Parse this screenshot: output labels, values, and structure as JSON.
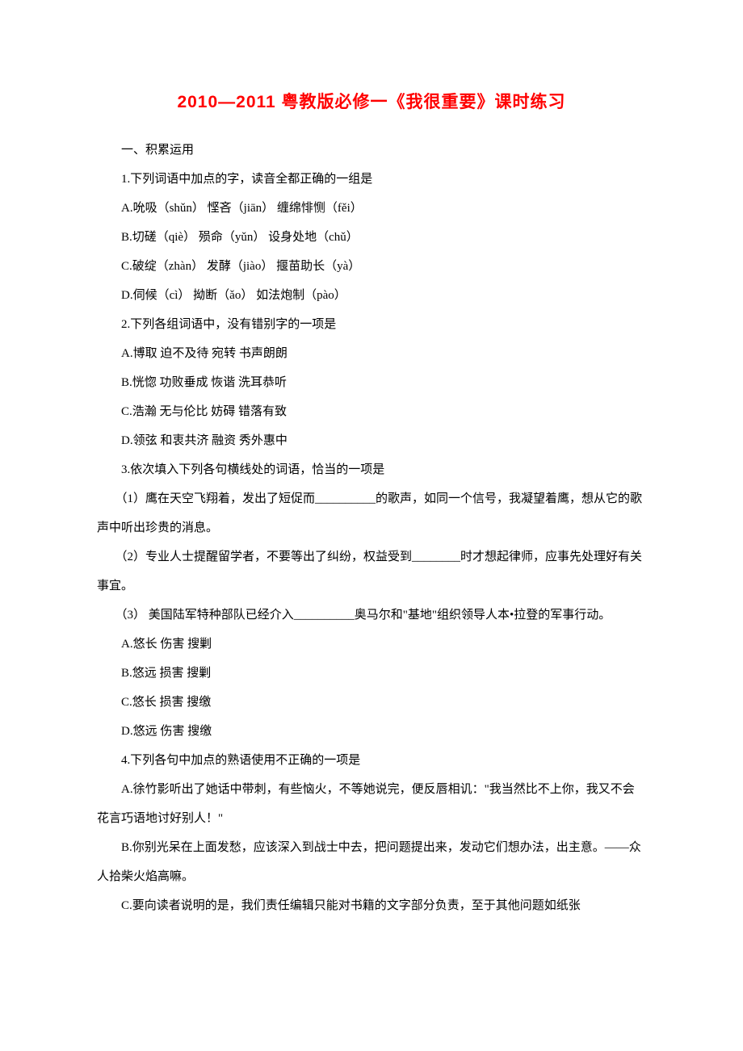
{
  "title": "2010—2011 粤教版必修一《我很重要》课时练习",
  "section_heading": "一、积累运用",
  "q1": {
    "stem": "1.下列词语中加点的字，读音全都正确的一组是",
    "a": "A.吮吸（shǔn）  悭吝（jiān）  缠绵悱恻（fěi）",
    "b": "B.切磋（qiè）  殒命（yǔn）  设身处地（chǔ）",
    "c": "C.破绽（zhàn）  发酵（jiào）  揠苗助长（yà）",
    "d": "D.伺候（cì）  拗断（ǎo）  如法炮制（pào）"
  },
  "q2": {
    "stem": "2.下列各组词语中，没有错别字的一项是",
    "a": "A.博取  迫不及待  宛转  书声朗朗",
    "b": "B.恍惚  功败垂成  恢谐  洗耳恭听",
    "c": "C.浩瀚  无与伦比  妨碍  错落有致",
    "d": "D.领弦  和衷共济  融资  秀外惠中"
  },
  "q3": {
    "stem": "3.依次填入下列各句横线处的词语，恰当的一项是",
    "item1_a": "（1）鹰在天空飞翔着，发出了短促而",
    "item1_b": "的歌声，如同一个信号，我凝望着鹰，想从它的歌声中听出珍贵的消息。",
    "item2_a": "（2）专业人士提醒留学者，不要等出了纠纷，权益受到",
    "item2_b": "时才想起律师，应事先处理好有关事宜。",
    "item3_a": "（3）  美国陆军特种部队已经介入",
    "item3_b": "奥马尔和\"基地\"组织领导人本•拉登的军事行动。",
    "a": "A.悠长  伤害  搜剿",
    "b": "B.悠远  损害  搜剿",
    "c": "C.悠长  损害  搜缴",
    "d": "D.悠远  伤害  搜缴"
  },
  "q4": {
    "stem": "4.下列各句中加点的熟语使用不正确的一项是",
    "a": "A.徐竹影听出了她话中带刺，有些恼火，不等她说完，便反唇相讥：\"我当然比不上你，我又不会花言巧语地讨好别人！\"",
    "b": "B.你别光呆在上面发愁，应该深入到战士中去，把问题提出来，发动它们想办法，出主意。——众人拾柴火焰高嘛。",
    "c": "C.要向读者说明的是，我们责任编辑只能对书籍的文字部分负责，至于其他问题如纸张"
  },
  "colors": {
    "title_color": "#ff0000",
    "text_color": "#000000",
    "background_color": "#ffffff"
  },
  "typography": {
    "title_fontsize": 21,
    "title_weight": "bold",
    "body_fontsize": 15,
    "line_height": 2.4
  }
}
